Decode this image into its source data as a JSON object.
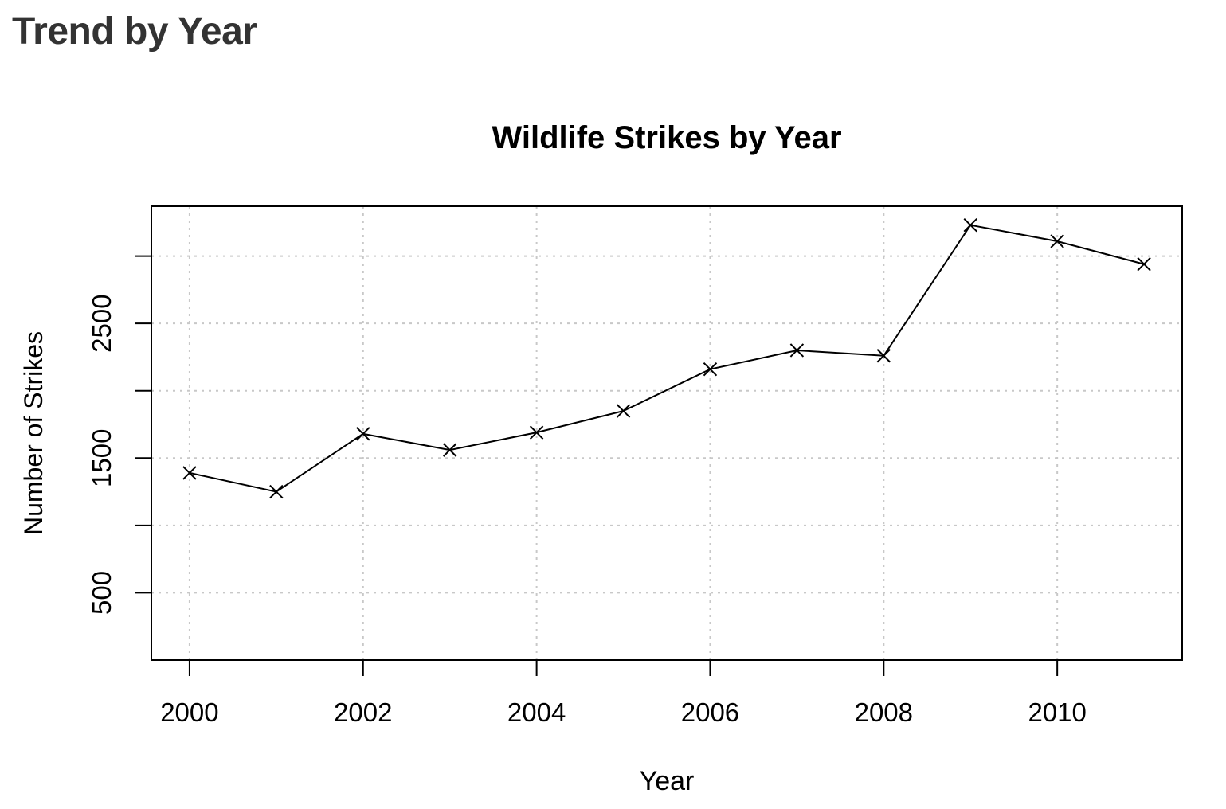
{
  "page": {
    "heading": "Trend by Year"
  },
  "chart_data": {
    "type": "line",
    "title": "Wildlife Strikes by Year",
    "xlabel": "Year",
    "ylabel": "Number of Strikes",
    "x": [
      2000,
      2001,
      2002,
      2003,
      2004,
      2005,
      2006,
      2007,
      2008,
      2009,
      2010,
      2011
    ],
    "series": [
      {
        "values": [
          1390,
          1250,
          1680,
          1560,
          1690,
          1850,
          2160,
          2300,
          2260,
          3230,
          3110,
          2940
        ],
        "marker": "x",
        "color": "#000000"
      }
    ],
    "xlim": [
      1999.56,
      2011.44
    ],
    "ylim": [
      0,
      3370
    ],
    "x_ticks": [
      2000,
      2002,
      2004,
      2006,
      2008,
      2010
    ],
    "x_tick_labels": [
      "2000",
      "2002",
      "2004",
      "2006",
      "2008",
      "2010"
    ],
    "y_ticks": [
      500,
      1000,
      1500,
      2000,
      2500,
      3000
    ],
    "y_tick_labels": [
      "500",
      "",
      "1500",
      "",
      "2500",
      ""
    ],
    "grid": true,
    "grid_style": "dotted",
    "legend": "none"
  }
}
